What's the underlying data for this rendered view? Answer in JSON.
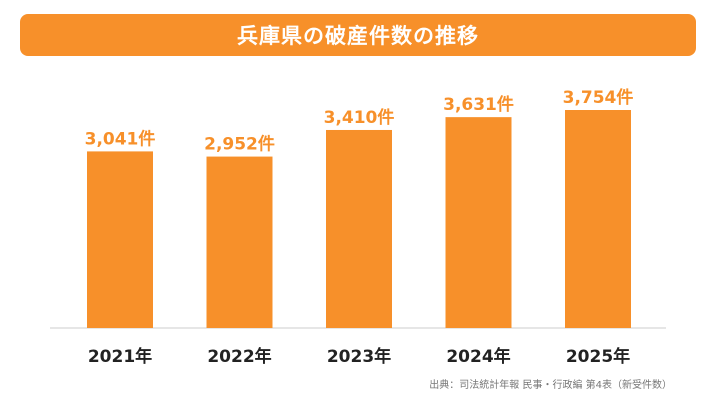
{
  "title": "兵庫県の破産件数の推移",
  "source": "出典：司法統計年報 民事・行政編 第4表（新受件数）",
  "colors": {
    "accent": "#f7902a",
    "bar": "#f7902a",
    "label": "#f7902a",
    "axis_text": "#222222",
    "baseline": "#cccccc"
  },
  "chart_data": {
    "type": "bar",
    "categories": [
      "2021年",
      "2022年",
      "2023年",
      "2024年",
      "2025年"
    ],
    "values": [
      3041,
      2952,
      3410,
      3631,
      3754
    ],
    "value_labels": [
      "3,041件",
      "2,952件",
      "3,410件",
      "3,631件",
      "3,754件"
    ],
    "ylim": [
      0,
      3754
    ],
    "grid": false,
    "legend": "none"
  }
}
